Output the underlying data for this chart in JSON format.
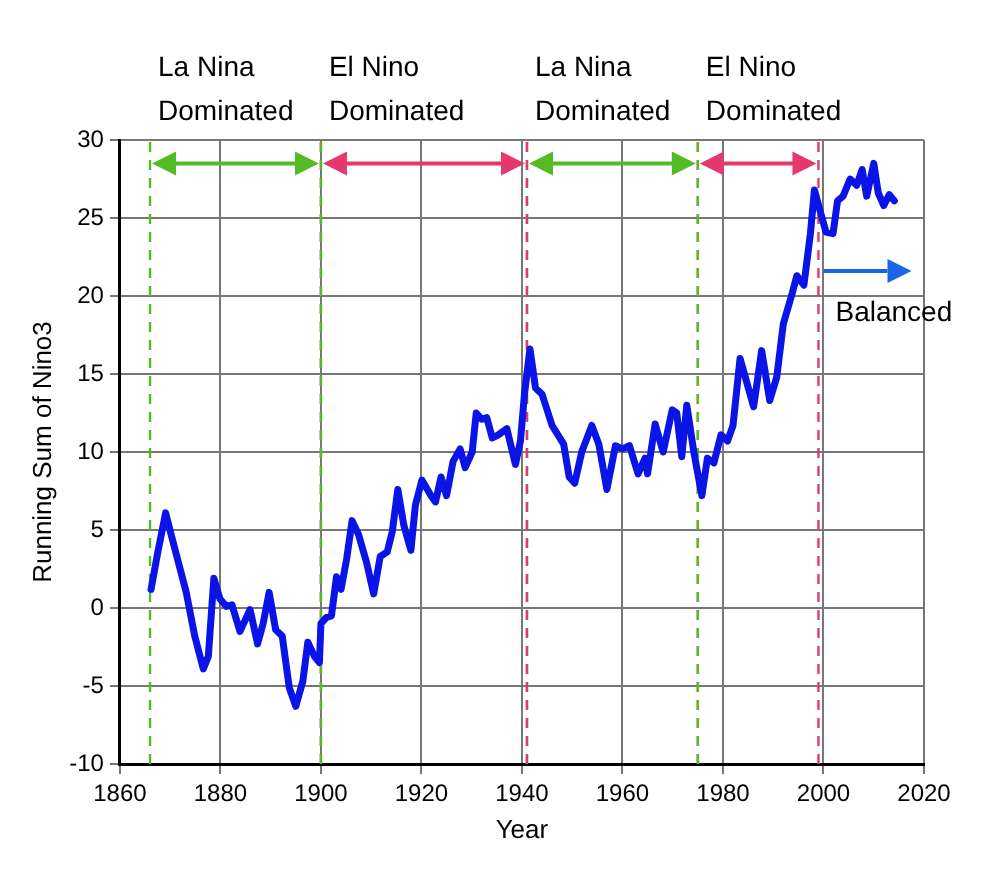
{
  "chart_data": {
    "type": "line",
    "xlabel": "Year",
    "ylabel": "Running Sum of Nino3",
    "xlim": [
      1860,
      2020
    ],
    "xticks": [
      1860,
      1880,
      1900,
      1920,
      1940,
      1960,
      1980,
      2000,
      2020
    ],
    "ylim": [
      -10,
      30
    ],
    "yticks": [
      -10,
      -5,
      0,
      5,
      10,
      15,
      20,
      25,
      30
    ],
    "grid": true,
    "legend": false,
    "marker": "none",
    "line_style": "solid",
    "series": [
      {
        "color": "#0a14e6",
        "x": [
          1866.2,
          1867.5,
          1869.1,
          1870.2,
          1871.5,
          1873.2,
          1874.9,
          1876.6,
          1877.6,
          1878.7,
          1879.9,
          1881.2,
          1882.3,
          1883.9,
          1885.9,
          1887.4,
          1888.5,
          1889.7,
          1891.0,
          1892.3,
          1893.7,
          1895.0,
          1896.4,
          1897.4,
          1898.7,
          1899.7,
          1900.0,
          1901.1,
          1902.1,
          1903.1,
          1904.0,
          1905.1,
          1906.2,
          1907.5,
          1909.1,
          1910.5,
          1911.8,
          1913.2,
          1914.2,
          1915.3,
          1916.5,
          1917.9,
          1918.8,
          1920.1,
          1921.9,
          1922.8,
          1923.9,
          1925.0,
          1926.3,
          1927.7,
          1928.7,
          1930.1,
          1930.9,
          1932.0,
          1933.0,
          1934.1,
          1935.3,
          1937.0,
          1938.7,
          1939.7,
          1940.5,
          1941.6,
          1942.7,
          1944.0,
          1946.0,
          1948.3,
          1949.4,
          1950.5,
          1951.9,
          1953.9,
          1955.3,
          1956.9,
          1958.6,
          1960.0,
          1961.4,
          1963.1,
          1964.5,
          1965.0,
          1966.5,
          1968.1,
          1969.9,
          1970.8,
          1971.8,
          1972.8,
          1974.2,
          1975.8,
          1976.9,
          1978.2,
          1979.6,
          1980.9,
          1982.0,
          1983.4,
          1984.7,
          1986.1,
          1987.7,
          1989.3,
          1990.7,
          1992.0,
          1993.8,
          1994.7,
          1996.1,
          1997.4,
          1998.2,
          1999.2,
          2000.5,
          2001.9,
          2002.8,
          2003.9,
          2005.3,
          2006.6,
          2007.7,
          2008.6,
          2010.0,
          2010.9,
          2012.0,
          2013.1,
          2014.1
        ],
        "values": [
          1.2,
          3.5,
          6.1,
          4.7,
          3.1,
          1.0,
          -1.8,
          -3.9,
          -3.1,
          1.9,
          0.6,
          0.1,
          0.2,
          -1.5,
          -0.1,
          -2.3,
          -1.0,
          1.0,
          -1.4,
          -1.8,
          -5.1,
          -6.3,
          -4.7,
          -2.2,
          -3.1,
          -3.5,
          -1.0,
          -0.6,
          -0.5,
          2.0,
          1.2,
          3.1,
          5.6,
          4.7,
          2.9,
          0.9,
          3.3,
          3.6,
          4.9,
          7.6,
          5.3,
          3.7,
          6.6,
          8.2,
          7.2,
          6.8,
          8.4,
          7.2,
          9.4,
          10.2,
          9.0,
          10.0,
          12.5,
          12.1,
          12.2,
          10.9,
          11.1,
          11.5,
          9.2,
          10.7,
          13.7,
          16.6,
          14.1,
          13.7,
          11.7,
          10.5,
          8.4,
          8.0,
          10.0,
          11.7,
          10.5,
          7.6,
          10.4,
          10.2,
          10.4,
          8.6,
          9.6,
          8.6,
          11.8,
          10.0,
          12.7,
          12.5,
          9.7,
          13.0,
          10.0,
          7.2,
          9.6,
          9.3,
          11.1,
          10.7,
          11.7,
          16.0,
          14.5,
          12.9,
          16.5,
          13.3,
          14.8,
          18.2,
          20.2,
          21.3,
          20.7,
          24.0,
          26.8,
          25.6,
          24.1,
          24.0,
          26.1,
          26.4,
          27.5,
          27.1,
          28.1,
          26.4,
          28.5,
          26.6,
          25.8,
          26.5,
          26.1
        ]
      }
    ],
    "ref_lines": [
      {
        "axis": "x",
        "value": 1866,
        "color": "#55bb22",
        "line_style": "dashed"
      },
      {
        "axis": "x",
        "value": 1900,
        "color": "#e6386a",
        "line_style": "dashed"
      },
      {
        "axis": "x",
        "value": 1900,
        "color": "#55bb22",
        "line_style": "dashed"
      },
      {
        "axis": "x",
        "value": 1941,
        "color": "#55bb22",
        "line_style": "dashed"
      },
      {
        "axis": "x",
        "value": 1941,
        "color": "#e6386a",
        "line_style": "dashed"
      },
      {
        "axis": "x",
        "value": 1975,
        "color": "#e6386a",
        "line_style": "dashed"
      },
      {
        "axis": "x",
        "value": 1975,
        "color": "#55bb22",
        "line_style": "dashed"
      },
      {
        "axis": "x",
        "value": 1999,
        "color": "#e6386a",
        "line_style": "dashed"
      }
    ],
    "annotations": [
      {
        "text": "La Nina Dominated",
        "x": 1866,
        "y": 28.5
      },
      {
        "text": "El Nino Dominated",
        "x": 1900,
        "y": 28.5
      },
      {
        "text": "La Nina Dominated",
        "x": 1941,
        "y": 28.5
      },
      {
        "text": "El Nino Dominated",
        "x": 1975,
        "y": 28.5
      },
      {
        "text": "Balanced",
        "x": 2000,
        "y": 21.6
      }
    ]
  }
}
